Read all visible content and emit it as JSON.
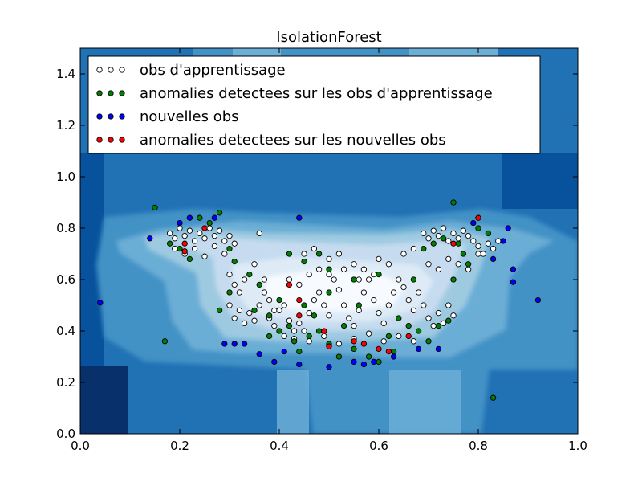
{
  "chart_data": {
    "type": "scatter",
    "title": "IsolationForest",
    "xlabel": "",
    "ylabel": "",
    "xlim": [
      0.0,
      1.0
    ],
    "ylim": [
      0.0,
      1.5
    ],
    "x_ticks": [
      "0.0",
      "0.2",
      "0.4",
      "0.6",
      "0.8",
      "1.0"
    ],
    "y_ticks": [
      "0.0",
      "0.2",
      "0.4",
      "0.6",
      "0.8",
      "1.0",
      "1.2",
      "1.4"
    ],
    "legend_position": "top-left",
    "background": "filled contour of anomaly score, blue colormap (darker = more anomalous)",
    "contour_colors": [
      "#08306b",
      "#08519c",
      "#2171b5",
      "#4292c6",
      "#6baed6",
      "#9ecae1",
      "#c6dbef",
      "#deebf7",
      "#f7fbff"
    ],
    "series": [
      {
        "name": "obs d'apprentissage",
        "color": "#ffffff",
        "points": [
          [
            0.18,
            0.78
          ],
          [
            0.19,
            0.76
          ],
          [
            0.2,
            0.8
          ],
          [
            0.21,
            0.77
          ],
          [
            0.22,
            0.79
          ],
          [
            0.23,
            0.75
          ],
          [
            0.24,
            0.78
          ],
          [
            0.25,
            0.76
          ],
          [
            0.26,
            0.8
          ],
          [
            0.27,
            0.77
          ],
          [
            0.28,
            0.79
          ],
          [
            0.29,
            0.75
          ],
          [
            0.3,
            0.77
          ],
          [
            0.31,
            0.74
          ],
          [
            0.19,
            0.72
          ],
          [
            0.21,
            0.7
          ],
          [
            0.23,
            0.72
          ],
          [
            0.25,
            0.69
          ],
          [
            0.27,
            0.73
          ],
          [
            0.29,
            0.7
          ],
          [
            0.3,
            0.62
          ],
          [
            0.31,
            0.58
          ],
          [
            0.32,
            0.55
          ],
          [
            0.33,
            0.6
          ],
          [
            0.3,
            0.5
          ],
          [
            0.31,
            0.45
          ],
          [
            0.32,
            0.48
          ],
          [
            0.33,
            0.43
          ],
          [
            0.34,
            0.47
          ],
          [
            0.35,
            0.44
          ],
          [
            0.36,
            0.5
          ],
          [
            0.37,
            0.55
          ],
          [
            0.38,
            0.52
          ],
          [
            0.39,
            0.48
          ],
          [
            0.35,
            0.66
          ],
          [
            0.36,
            0.78
          ],
          [
            0.37,
            0.6
          ],
          [
            0.38,
            0.45
          ],
          [
            0.39,
            0.42
          ],
          [
            0.4,
            0.48
          ],
          [
            0.41,
            0.5
          ],
          [
            0.42,
            0.44
          ],
          [
            0.43,
            0.4
          ],
          [
            0.44,
            0.43
          ],
          [
            0.45,
            0.4
          ],
          [
            0.46,
            0.47
          ],
          [
            0.47,
            0.52
          ],
          [
            0.48,
            0.55
          ],
          [
            0.49,
            0.5
          ],
          [
            0.5,
            0.46
          ],
          [
            0.51,
            0.6
          ],
          [
            0.52,
            0.56
          ],
          [
            0.53,
            0.5
          ],
          [
            0.54,
            0.45
          ],
          [
            0.55,
            0.42
          ],
          [
            0.56,
            0.48
          ],
          [
            0.57,
            0.55
          ],
          [
            0.58,
            0.6
          ],
          [
            0.59,
            0.52
          ],
          [
            0.6,
            0.47
          ],
          [
            0.61,
            0.43
          ],
          [
            0.62,
            0.5
          ],
          [
            0.63,
            0.55
          ],
          [
            0.64,
            0.6
          ],
          [
            0.65,
            0.57
          ],
          [
            0.66,
            0.52
          ],
          [
            0.67,
            0.48
          ],
          [
            0.68,
            0.55
          ],
          [
            0.69,
            0.5
          ],
          [
            0.7,
            0.45
          ],
          [
            0.71,
            0.42
          ],
          [
            0.72,
            0.47
          ],
          [
            0.73,
            0.43
          ],
          [
            0.74,
            0.5
          ],
          [
            0.75,
            0.46
          ],
          [
            0.45,
            0.7
          ],
          [
            0.47,
            0.72
          ],
          [
            0.5,
            0.68
          ],
          [
            0.52,
            0.7
          ],
          [
            0.55,
            0.66
          ],
          [
            0.57,
            0.64
          ],
          [
            0.6,
            0.68
          ],
          [
            0.62,
            0.66
          ],
          [
            0.65,
            0.7
          ],
          [
            0.67,
            0.72
          ],
          [
            0.69,
            0.78
          ],
          [
            0.7,
            0.76
          ],
          [
            0.71,
            0.79
          ],
          [
            0.72,
            0.77
          ],
          [
            0.73,
            0.8
          ],
          [
            0.74,
            0.75
          ],
          [
            0.75,
            0.78
          ],
          [
            0.76,
            0.76
          ],
          [
            0.77,
            0.79
          ],
          [
            0.78,
            0.77
          ],
          [
            0.79,
            0.75
          ],
          [
            0.8,
            0.73
          ],
          [
            0.81,
            0.7
          ],
          [
            0.82,
            0.74
          ],
          [
            0.83,
            0.72
          ],
          [
            0.84,
            0.75
          ],
          [
            0.7,
            0.66
          ],
          [
            0.72,
            0.64
          ],
          [
            0.74,
            0.68
          ],
          [
            0.76,
            0.66
          ],
          [
            0.78,
            0.64
          ],
          [
            0.8,
            0.7
          ],
          [
            0.41,
            0.38
          ],
          [
            0.43,
            0.37
          ],
          [
            0.46,
            0.36
          ],
          [
            0.49,
            0.38
          ],
          [
            0.52,
            0.35
          ],
          [
            0.55,
            0.37
          ],
          [
            0.58,
            0.39
          ],
          [
            0.61,
            0.36
          ],
          [
            0.64,
            0.38
          ],
          [
            0.67,
            0.36
          ],
          [
            0.42,
            0.6
          ],
          [
            0.44,
            0.58
          ],
          [
            0.46,
            0.62
          ],
          [
            0.48,
            0.64
          ],
          [
            0.5,
            0.62
          ],
          [
            0.53,
            0.64
          ],
          [
            0.56,
            0.6
          ],
          [
            0.59,
            0.62
          ]
        ]
      },
      {
        "name": "anomalies detectees sur les obs d'apprentissage",
        "color": "#008000",
        "points": [
          [
            0.15,
            0.88
          ],
          [
            0.18,
            0.74
          ],
          [
            0.2,
            0.72
          ],
          [
            0.22,
            0.68
          ],
          [
            0.24,
            0.84
          ],
          [
            0.26,
            0.82
          ],
          [
            0.28,
            0.86
          ],
          [
            0.3,
            0.72
          ],
          [
            0.31,
            0.67
          ],
          [
            0.28,
            0.48
          ],
          [
            0.3,
            0.55
          ],
          [
            0.34,
            0.62
          ],
          [
            0.36,
            0.58
          ],
          [
            0.38,
            0.46
          ],
          [
            0.4,
            0.4
          ],
          [
            0.42,
            0.42
          ],
          [
            0.43,
            0.36
          ],
          [
            0.44,
            0.32
          ],
          [
            0.46,
            0.38
          ],
          [
            0.48,
            0.4
          ],
          [
            0.5,
            0.35
          ],
          [
            0.52,
            0.3
          ],
          [
            0.55,
            0.33
          ],
          [
            0.58,
            0.3
          ],
          [
            0.6,
            0.28
          ],
          [
            0.62,
            0.38
          ],
          [
            0.64,
            0.45
          ],
          [
            0.66,
            0.42
          ],
          [
            0.68,
            0.4
          ],
          [
            0.7,
            0.36
          ],
          [
            0.72,
            0.42
          ],
          [
            0.74,
            0.44
          ],
          [
            0.75,
            0.9
          ],
          [
            0.76,
            0.74
          ],
          [
            0.77,
            0.7
          ],
          [
            0.73,
            0.76
          ],
          [
            0.71,
            0.74
          ],
          [
            0.69,
            0.72
          ],
          [
            0.8,
            0.8
          ],
          [
            0.82,
            0.78
          ],
          [
            0.78,
            0.66
          ],
          [
            0.75,
            0.6
          ],
          [
            0.42,
            0.7
          ],
          [
            0.45,
            0.67
          ],
          [
            0.48,
            0.7
          ],
          [
            0.5,
            0.64
          ],
          [
            0.55,
            0.6
          ],
          [
            0.6,
            0.62
          ],
          [
            0.17,
            0.36
          ],
          [
            0.35,
            0.48
          ],
          [
            0.38,
            0.38
          ],
          [
            0.45,
            0.5
          ],
          [
            0.53,
            0.42
          ],
          [
            0.63,
            0.32
          ],
          [
            0.67,
            0.6
          ],
          [
            0.83,
            0.14
          ],
          [
            0.4,
            0.52
          ],
          [
            0.47,
            0.46
          ],
          [
            0.5,
            0.55
          ],
          [
            0.56,
            0.5
          ]
        ]
      },
      {
        "name": "nouvelles obs",
        "color": "#0000ff",
        "points": [
          [
            0.04,
            0.51
          ],
          [
            0.14,
            0.76
          ],
          [
            0.2,
            0.82
          ],
          [
            0.22,
            0.84
          ],
          [
            0.27,
            0.84
          ],
          [
            0.29,
            0.35
          ],
          [
            0.31,
            0.35
          ],
          [
            0.33,
            0.35
          ],
          [
            0.36,
            0.31
          ],
          [
            0.39,
            0.28
          ],
          [
            0.41,
            0.32
          ],
          [
            0.44,
            0.84
          ],
          [
            0.44,
            0.27
          ],
          [
            0.5,
            0.26
          ],
          [
            0.55,
            0.28
          ],
          [
            0.57,
            0.27
          ],
          [
            0.59,
            0.28
          ],
          [
            0.63,
            0.3
          ],
          [
            0.68,
            0.33
          ],
          [
            0.72,
            0.33
          ],
          [
            0.79,
            0.82
          ],
          [
            0.83,
            0.68
          ],
          [
            0.85,
            0.75
          ],
          [
            0.86,
            0.8
          ],
          [
            0.87,
            0.64
          ],
          [
            0.87,
            0.59
          ],
          [
            0.92,
            0.52
          ]
        ]
      },
      {
        "name": "anomalies detectees sur les nouvelles obs",
        "color": "#ff0000",
        "points": [
          [
            0.21,
            0.74
          ],
          [
            0.21,
            0.71
          ],
          [
            0.25,
            0.8
          ],
          [
            0.42,
            0.58
          ],
          [
            0.44,
            0.52
          ],
          [
            0.44,
            0.46
          ],
          [
            0.49,
            0.4
          ],
          [
            0.5,
            0.34
          ],
          [
            0.55,
            0.36
          ],
          [
            0.57,
            0.35
          ],
          [
            0.6,
            0.33
          ],
          [
            0.62,
            0.32
          ],
          [
            0.66,
            0.38
          ],
          [
            0.75,
            0.74
          ],
          [
            0.8,
            0.84
          ]
        ]
      }
    ]
  }
}
